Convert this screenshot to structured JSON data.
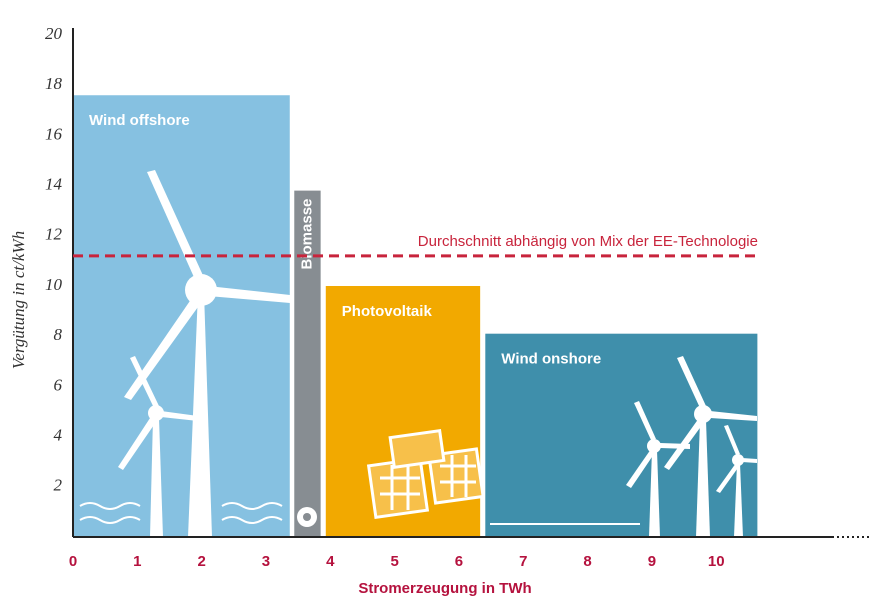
{
  "chart_data": {
    "type": "bar",
    "categories": [
      "Wind offshore",
      "Biomasse",
      "Photovoltaik",
      "Wind onshore"
    ],
    "values": [
      17.6,
      13.8,
      10.0,
      8.1
    ],
    "x_start": [
      0,
      3.44,
      3.93,
      6.41
    ],
    "x_end": [
      3.37,
      3.85,
      6.33,
      10.64
    ],
    "colors": [
      "#86c1e1",
      "#878d92",
      "#f2a900",
      "#3f8fab"
    ],
    "average": {
      "value": 11.2,
      "label": "Durchschnitt abhängig von Mix der EE-Technologie",
      "color": "#c8243c"
    },
    "xlabel": "Stromerzeugung in TWh",
    "ylabel": "Vergütung in ct/kWh",
    "xlim": [
      0,
      11.8
    ],
    "ylim": [
      0,
      20
    ],
    "xticks": [
      0,
      1,
      2,
      3,
      4,
      5,
      6,
      7,
      8,
      9,
      10
    ],
    "yticks": [
      2,
      4,
      6,
      8,
      10,
      12,
      14,
      16,
      18,
      20
    ]
  }
}
